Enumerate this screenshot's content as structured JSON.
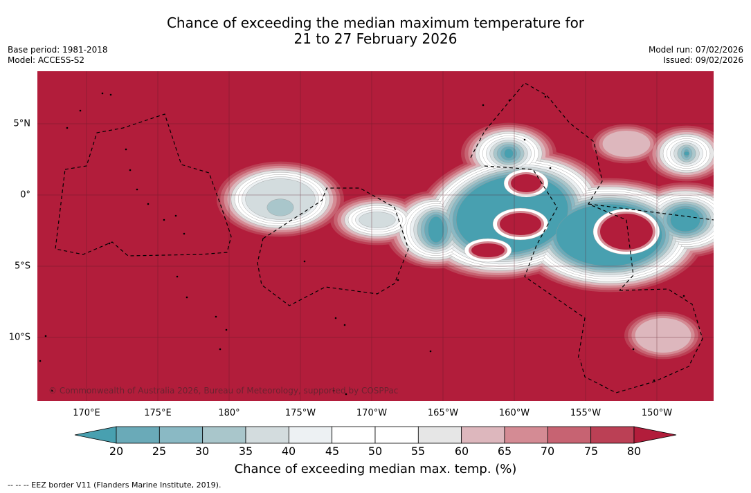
{
  "title": {
    "line1": "Chance of exceeding the median maximum temperature for",
    "line2": "21 to 27 February 2026"
  },
  "meta": {
    "base_period": "Base period: 1981-2018",
    "model": "Model: ACCESS-S2",
    "model_run": "Model run: 07/02/2026",
    "issued": "Issued: 09/02/2026"
  },
  "map": {
    "region": "Central Pacific",
    "longitude_labels": [
      "170°E",
      "175°E",
      "180°",
      "175°W",
      "170°W",
      "165°W",
      "160°W",
      "155°W",
      "150°W"
    ],
    "latitude_labels": [
      "5°N",
      "0°",
      "5°S",
      "10°S"
    ],
    "copyright": "© Commonwealth of Australia 2026, Bureau of Meteorology, supported by COSPPac",
    "background_class": "80+",
    "colors": {
      "c_lt20": "#48a0b0",
      "c20": "#6aaab8",
      "c25": "#8ab9c4",
      "c30": "#a9c6cb",
      "c35": "#d3dcde",
      "c40": "#edf1f3",
      "c45": "#ffffff",
      "c50": "#ffffff",
      "c55": "#e6e6e6",
      "c60": "#ddb7bd",
      "c65": "#d48b94",
      "c70": "#c76372",
      "c75": "#bb4055",
      "c80": "#b21d3b"
    }
  },
  "colorbar": {
    "ticks": [
      "20",
      "25",
      "30",
      "35",
      "40",
      "45",
      "50",
      "55",
      "60",
      "65",
      "70",
      "75",
      "80"
    ],
    "title": "Chance of exceeding median max. temp. (%)",
    "segment_colors": [
      "#6aaab8",
      "#8ab9c4",
      "#a9c6cb",
      "#d3dcde",
      "#edf1f3",
      "#ffffff",
      "#ffffff",
      "#e6e6e6",
      "#ddb7bd",
      "#d48b94",
      "#c76372",
      "#bb4055"
    ],
    "under_color": "#48a0b0",
    "over_color": "#b21d3b"
  },
  "footnote": "--  --  -- EEZ border V11 (Flanders Marine Institute, 2019)."
}
